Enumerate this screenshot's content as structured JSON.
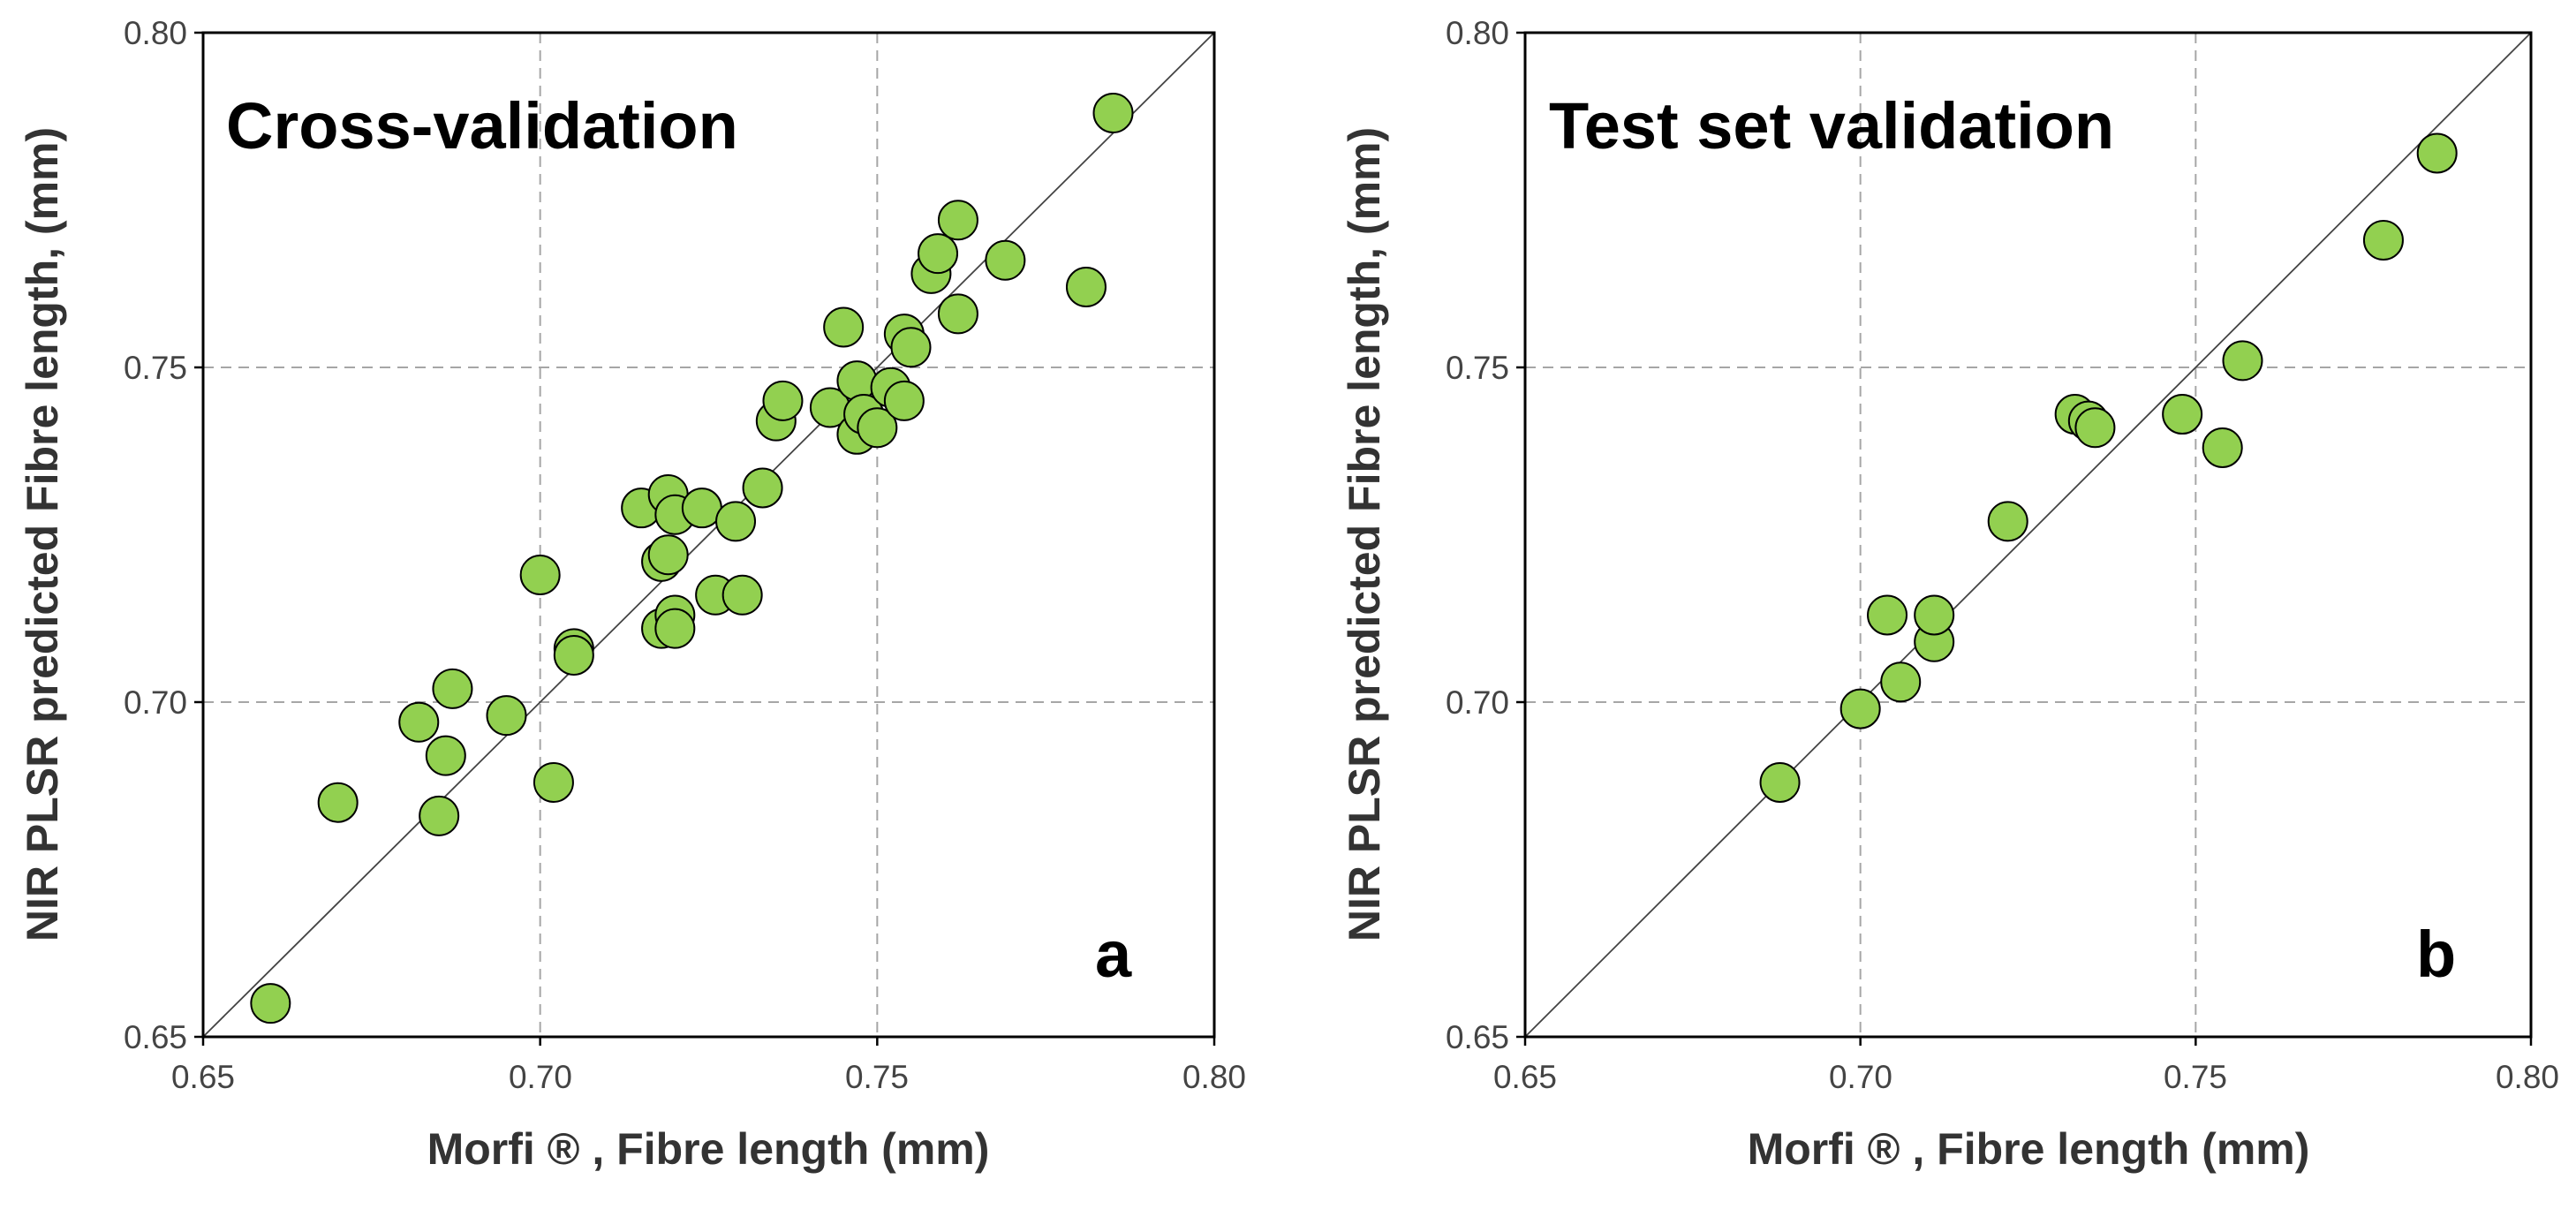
{
  "chart_data": [
    {
      "type": "scatter",
      "title": "Cross-validation",
      "panel_label": "a",
      "xlabel": "Morfi ® , Fibre length (mm)",
      "ylabel": "NIR PLSR predicted Fibre length, (mm)",
      "xlim": [
        0.65,
        0.8
      ],
      "ylim": [
        0.65,
        0.8
      ],
      "xticks": [
        "0.65",
        "0.70",
        "0.75",
        "0.80"
      ],
      "yticks": [
        "0.65",
        "0.70",
        "0.75",
        "0.80"
      ],
      "grid": true,
      "reference_line": "1:1",
      "color": "#92d050",
      "points": [
        [
          0.66,
          0.655
        ],
        [
          0.67,
          0.685
        ],
        [
          0.682,
          0.697
        ],
        [
          0.685,
          0.683
        ],
        [
          0.686,
          0.692
        ],
        [
          0.687,
          0.702
        ],
        [
          0.695,
          0.698
        ],
        [
          0.7,
          0.719
        ],
        [
          0.702,
          0.688
        ],
        [
          0.705,
          0.708
        ],
        [
          0.705,
          0.707
        ],
        [
          0.715,
          0.729
        ],
        [
          0.718,
          0.721
        ],
        [
          0.718,
          0.711
        ],
        [
          0.719,
          0.722
        ],
        [
          0.719,
          0.731
        ],
        [
          0.72,
          0.713
        ],
        [
          0.72,
          0.728
        ],
        [
          0.72,
          0.711
        ],
        [
          0.724,
          0.729
        ],
        [
          0.726,
          0.716
        ],
        [
          0.729,
          0.727
        ],
        [
          0.73,
          0.716
        ],
        [
          0.733,
          0.732
        ],
        [
          0.735,
          0.742
        ],
        [
          0.736,
          0.745
        ],
        [
          0.743,
          0.744
        ],
        [
          0.745,
          0.756
        ],
        [
          0.747,
          0.748
        ],
        [
          0.747,
          0.74
        ],
        [
          0.748,
          0.743
        ],
        [
          0.75,
          0.741
        ],
        [
          0.752,
          0.747
        ],
        [
          0.754,
          0.755
        ],
        [
          0.754,
          0.745
        ],
        [
          0.755,
          0.753
        ],
        [
          0.758,
          0.764
        ],
        [
          0.759,
          0.767
        ],
        [
          0.762,
          0.772
        ],
        [
          0.762,
          0.758
        ],
        [
          0.769,
          0.766
        ],
        [
          0.781,
          0.762
        ],
        [
          0.785,
          0.788
        ]
      ]
    },
    {
      "type": "scatter",
      "title": "Test set validation",
      "panel_label": "b",
      "xlabel": "Morfi ® , Fibre length (mm)",
      "ylabel": "NIR PLSR predicted Fibre length, (mm)",
      "xlim": [
        0.65,
        0.8
      ],
      "ylim": [
        0.65,
        0.8
      ],
      "xticks": [
        "0.65",
        "0.70",
        "0.75",
        "0.80"
      ],
      "yticks": [
        "0.65",
        "0.70",
        "0.75",
        "0.80"
      ],
      "grid": true,
      "reference_line": "1:1",
      "color": "#92d050",
      "points": [
        [
          0.688,
          0.688
        ],
        [
          0.7,
          0.699
        ],
        [
          0.704,
          0.713
        ],
        [
          0.706,
          0.703
        ],
        [
          0.711,
          0.709
        ],
        [
          0.711,
          0.713
        ],
        [
          0.722,
          0.727
        ],
        [
          0.732,
          0.743
        ],
        [
          0.734,
          0.742
        ],
        [
          0.735,
          0.741
        ],
        [
          0.748,
          0.743
        ],
        [
          0.754,
          0.738
        ],
        [
          0.757,
          0.751
        ],
        [
          0.778,
          0.769
        ],
        [
          0.786,
          0.782
        ]
      ]
    }
  ]
}
